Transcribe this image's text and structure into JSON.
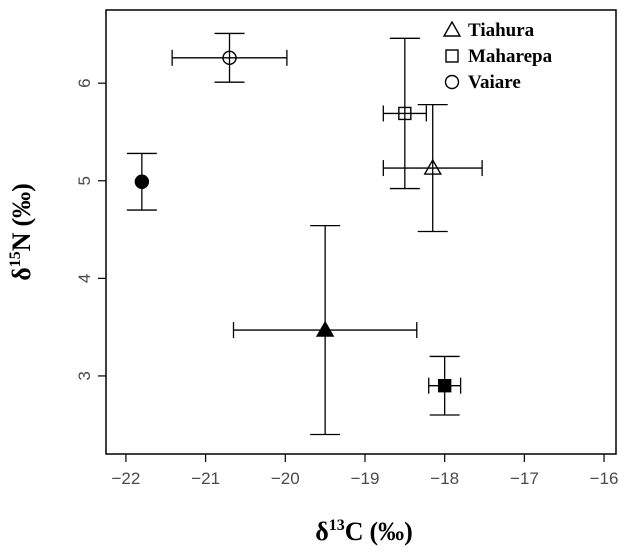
{
  "chart_data": {
    "type": "scatter",
    "x_axis": {
      "delta": "δ",
      "isotope": "13",
      "element": "C",
      "unit": "(‰)",
      "range": [
        -22.25,
        -15.85
      ],
      "ticks": [
        -22,
        -21,
        -20,
        -19,
        -18,
        -17,
        -16
      ],
      "tick_labels": [
        "−22",
        "−21",
        "−20",
        "−19",
        "−18",
        "−17",
        "−16"
      ]
    },
    "y_axis": {
      "delta": "δ",
      "isotope": "15",
      "element": "N",
      "unit": "(‰)",
      "range": [
        2.2,
        6.75
      ],
      "ticks": [
        3,
        4,
        5,
        6
      ],
      "tick_labels": [
        "3",
        "4",
        "5",
        "6"
      ]
    },
    "legend": {
      "placement": "top-right",
      "entries": [
        {
          "label": "Tiahura",
          "marker": "triangle"
        },
        {
          "label": "Maharepa",
          "marker": "square"
        },
        {
          "label": "Vaiare",
          "marker": "circle"
        }
      ]
    },
    "series": [
      {
        "marker": "triangle",
        "points": [
          {
            "x": -18.15,
            "y": 5.13,
            "x_err": 0.62,
            "y_err": 0.65,
            "filled": false
          },
          {
            "x": -19.5,
            "y": 3.47,
            "x_err": 1.15,
            "y_err": 1.07,
            "filled": true
          }
        ]
      },
      {
        "marker": "square",
        "points": [
          {
            "x": -18.5,
            "y": 5.69,
            "x_err": 0.27,
            "y_err": 0.77,
            "filled": false
          },
          {
            "x": -18.0,
            "y": 2.9,
            "x_err": 0.2,
            "y_err": 0.3,
            "filled": true
          }
        ]
      },
      {
        "marker": "circle",
        "points": [
          {
            "x": -20.7,
            "y": 6.26,
            "x_err": 0.72,
            "y_err": 0.25,
            "filled": false
          },
          {
            "x": -21.8,
            "y": 4.99,
            "x_err": 0.0,
            "y_err": 0.29,
            "filled": true
          }
        ]
      }
    ],
    "grid": false
  }
}
